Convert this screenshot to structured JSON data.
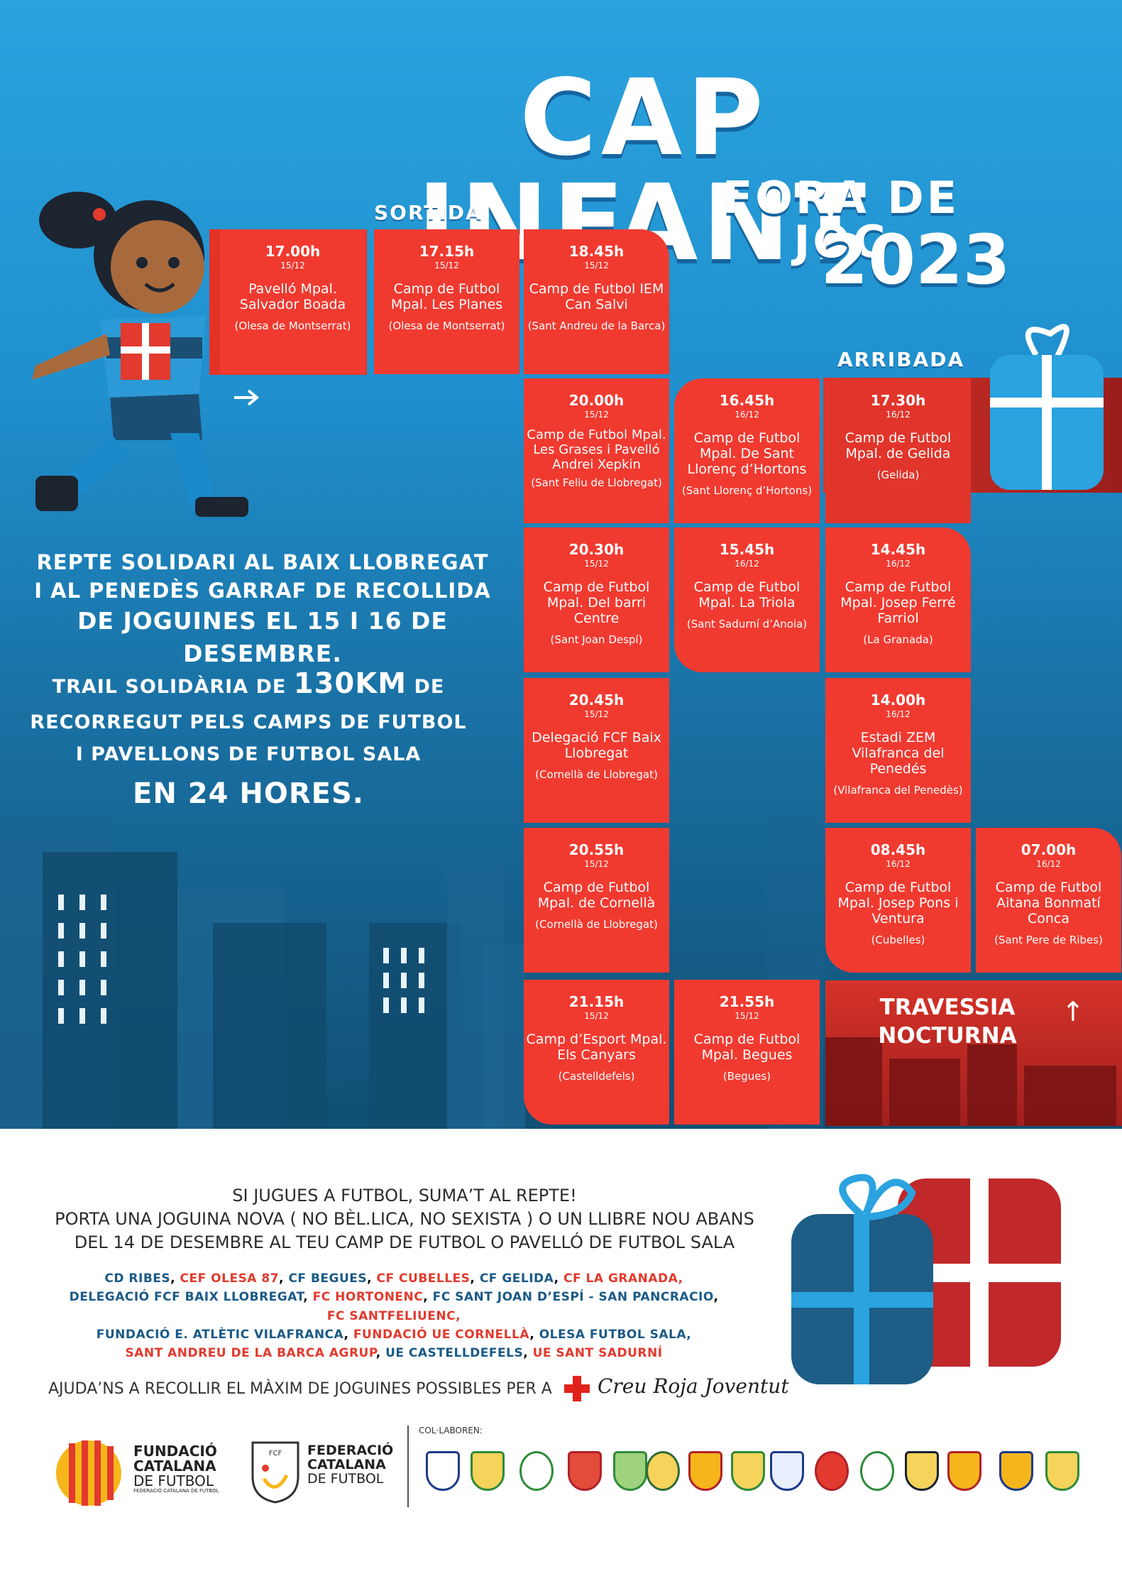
{
  "header": {
    "title": "CAP INFANT",
    "subtitle": "FORA DE JOC",
    "year": "2023"
  },
  "board": {
    "start_label": "SORTIDA",
    "end_label": "ARRIBADA",
    "cells": [
      {
        "time": "17.00h",
        "date": "15/12",
        "venue": "Pavelló Mpal. Salvador Boada",
        "town": "(Olesa de Montserrat)"
      },
      {
        "time": "17.15h",
        "date": "15/12",
        "venue": "Camp de Futbol Mpal. Les Planes",
        "town": "(Olesa de Montserrat)"
      },
      {
        "time": "18.45h",
        "date": "15/12",
        "venue": "Camp de Futbol IEM Can Salvi",
        "town": "(Sant Andreu de la Barca)"
      },
      {
        "time": "20.00h",
        "date": "15/12",
        "venue": "Camp de Futbol Mpal. Les Grases i Pavelló Andrei Xepkin",
        "town": "(Sant Feliu de Llobregat)"
      },
      {
        "time": "16.45h",
        "date": "16/12",
        "venue": "Camp de Futbol Mpal. De Sant Llorenç d’Hortons",
        "town": "(Sant Llorenç d’Hortons)"
      },
      {
        "time": "17.30h",
        "date": "16/12",
        "venue": "Camp de Futbol Mpal. de Gelida",
        "town": "(Gelida)"
      },
      {
        "time": "20.30h",
        "date": "15/12",
        "venue": "Camp de Futbol Mpal. Del barri Centre",
        "town": "(Sant Joan Despí)"
      },
      {
        "time": "15.45h",
        "date": "16/12",
        "venue": "Camp de Futbol Mpal. La Triola",
        "town": "(Sant Sadurní d’Anoia)"
      },
      {
        "time": "14.45h",
        "date": "16/12",
        "venue": "Camp de Futbol Mpal. Josep Ferré Farriol",
        "town": "(La Granada)"
      },
      {
        "time": "20.45h",
        "date": "15/12",
        "venue": "Delegació FCF Baix Llobregat",
        "town": "(Cornellà de Llobregat)"
      },
      {
        "time": "14.00h",
        "date": "16/12",
        "venue": "Estadi ZEM Vilafranca del Penedés",
        "town": "(Vilafranca del Penedès)"
      },
      {
        "time": "20.55h",
        "date": "15/12",
        "venue": "Camp de Futbol Mpal. de Cornellà",
        "town": "(Cornellà de Llobregat)"
      },
      {
        "time": "08.45h",
        "date": "16/12",
        "venue": "Camp de Futbol Mpal. Josep Pons i Ventura",
        "town": "(Cubelles)"
      },
      {
        "time": "07.00h",
        "date": "16/12",
        "venue": "Camp de Futbol Aitana Bonmatí Conca",
        "town": "(Sant Pere de Ribes)"
      },
      {
        "time": "21.15h",
        "date": "15/12",
        "venue": "Camp d’Esport Mpal. Els Canyars",
        "town": "(Castelldefels)"
      },
      {
        "time": "21.55h",
        "date": "15/12",
        "venue": "Camp de Futbol Mpal. Begues",
        "town": "(Begues)"
      }
    ],
    "night_label_1": "TRAVESSIA",
    "night_label_2": "NOCTURNA",
    "night_arrow": "↑"
  },
  "side": {
    "line1": "REPTE SOLIDARI AL BAIX LLOBREGAT",
    "line2": "I AL PENEDÈS GARRAF DE RECOLLIDA",
    "line3": "DE JOGUINES EL 15 I 16 DE DESEMBRE.",
    "trail1_pre": "TRAIL SOLIDÀRIA DE ",
    "trail1_big": "130KM",
    "trail1_post": " DE",
    "trail2": "RECORREGUT PELS CAMPS DE FUTBOL",
    "trail3": "I PAVELLONS DE FUTBOL SALA",
    "trail4": "EN 24 HORES."
  },
  "bottom": {
    "line1": "SI JUGUES A FUTBOL, SUMA’T AL REPTE!",
    "line2": "PORTA UNA JOGUINA NOVA ( NO BÈL.LICA, NO SEXISTA ) O UN LLIBRE NOU ABANS",
    "line3": "DEL 14 DE DESEMBRE AL TEU CAMP DE FUTBOL O PAVELLÓ DE FUTBOL SALA",
    "clubs": [
      [
        "CD RIBES",
        "CEF OLESA 87",
        "CF BEGUES",
        "CF CUBELLES",
        "CF GELIDA",
        "CF LA GRANADA,"
      ],
      [
        "DELEGACIÓ FCF BAIX LLOBREGAT",
        "FC HORTONENC",
        "FC SANT JOAN D’ESPÍ - SAN PANCRACIO",
        "FC SANTFELIUENC,"
      ],
      [
        "FUNDACIÓ E. ATLÈTIC VILAFRANCA",
        "FUNDACIÓ UE CORNELLÀ",
        "OLESA FUTBOL SALA,"
      ],
      [
        "SANT ANDREU DE LA BARCA AGRUP",
        "UE CASTELLDEFELS",
        "UE SANT SADURNÍ"
      ]
    ],
    "help": "AJUDA’NS A RECOLLIR EL MÀXIM DE JOGUINES POSSIBLES PER A",
    "creu_roja": "Creu Roja Joventut",
    "fundacio_1": "FUNDACIÓ",
    "fundacio_2": "CATALANA",
    "fundacio_3": "DE FUTBOL",
    "fundacio_4": "FEDERACIÓ CATALANA DE FUTBOL",
    "federacio_1": "FEDERACIÓ",
    "federacio_2": "CATALANA",
    "federacio_3": "DE FUTBOL",
    "fcf_mark": "FCF",
    "collab": "COL·LABOREN:"
  },
  "colors": {
    "red": "#f03a30",
    "blue_bg": "#1f8fcd",
    "navy": "#1a5a86"
  }
}
